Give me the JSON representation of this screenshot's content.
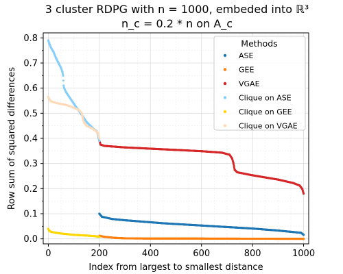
{
  "chart_data": {
    "type": "scatter",
    "title_line1": "3 cluster RDPG with n = 1000, embeded into ℝ³",
    "title_line2": "n_c = 0.2 * n on A_c",
    "xlabel": "Index from largest to smallest distance",
    "ylabel": "Row sum of squared differences",
    "xlim": [
      -20,
      1020
    ],
    "ylim": [
      -0.02,
      0.82
    ],
    "x_ticks": [
      0,
      200,
      400,
      600,
      800,
      1000
    ],
    "y_ticks": [
      0.0,
      0.1,
      0.2,
      0.3,
      0.4,
      0.5,
      0.6,
      0.7,
      0.8
    ],
    "x_tick_labels": [
      "0",
      "200",
      "400",
      "600",
      "800",
      "1000"
    ],
    "y_tick_labels": [
      "0.0",
      "0.1",
      "0.2",
      "0.3",
      "0.4",
      "0.5",
      "0.6",
      "0.7",
      "0.8"
    ],
    "grid": true,
    "legend_title": "Methods",
    "legend_position": "top-right",
    "series": [
      {
        "name": "ASE",
        "color": "#1f77b4",
        "points": [
          [
            200,
            0.1
          ],
          [
            210,
            0.088
          ],
          [
            250,
            0.079
          ],
          [
            300,
            0.074
          ],
          [
            350,
            0.07
          ],
          [
            400,
            0.066
          ],
          [
            450,
            0.062
          ],
          [
            500,
            0.059
          ],
          [
            550,
            0.056
          ],
          [
            600,
            0.053
          ],
          [
            650,
            0.05
          ],
          [
            700,
            0.047
          ],
          [
            750,
            0.044
          ],
          [
            800,
            0.041
          ],
          [
            850,
            0.037
          ],
          [
            900,
            0.033
          ],
          [
            950,
            0.028
          ],
          [
            990,
            0.024
          ],
          [
            1000,
            0.016
          ]
        ]
      },
      {
        "name": "GEE",
        "color": "#ff7f0e",
        "points": [
          [
            200,
            0.012
          ],
          [
            220,
            0.008
          ],
          [
            260,
            0.004
          ],
          [
            300,
            0.002
          ],
          [
            400,
            0.001
          ],
          [
            600,
            0.001
          ],
          [
            800,
            0.0005
          ],
          [
            1000,
            0.0
          ]
        ]
      },
      {
        "name": "VGAE",
        "color": "#d62728",
        "points": [
          [
            200,
            0.39
          ],
          [
            205,
            0.375
          ],
          [
            220,
            0.37
          ],
          [
            300,
            0.364
          ],
          [
            400,
            0.359
          ],
          [
            500,
            0.354
          ],
          [
            600,
            0.349
          ],
          [
            680,
            0.343
          ],
          [
            710,
            0.335
          ],
          [
            720,
            0.32
          ],
          [
            725,
            0.302
          ],
          [
            730,
            0.275
          ],
          [
            740,
            0.265
          ],
          [
            800,
            0.253
          ],
          [
            900,
            0.236
          ],
          [
            960,
            0.222
          ],
          [
            985,
            0.212
          ],
          [
            995,
            0.198
          ],
          [
            1000,
            0.18
          ]
        ]
      },
      {
        "name": "Clique on ASE",
        "color": "#87cefa",
        "points": [
          [
            0,
            0.79
          ],
          [
            5,
            0.775
          ],
          [
            10,
            0.762
          ],
          [
            20,
            0.745
          ],
          [
            30,
            0.72
          ],
          [
            40,
            0.7
          ],
          [
            50,
            0.68
          ],
          [
            55,
            0.665
          ],
          [
            58,
            0.65
          ],
          [
            60,
            0.61
          ],
          [
            62,
            0.6
          ],
          [
            70,
            0.583
          ],
          [
            80,
            0.568
          ],
          [
            90,
            0.553
          ],
          [
            100,
            0.538
          ],
          [
            110,
            0.523
          ],
          [
            120,
            0.51
          ],
          [
            130,
            0.495
          ],
          [
            140,
            0.48
          ],
          [
            150,
            0.465
          ],
          [
            160,
            0.455
          ],
          [
            170,
            0.445
          ],
          [
            180,
            0.435
          ],
          [
            188,
            0.43
          ],
          [
            193,
            0.42
          ],
          [
            197,
            0.4
          ],
          [
            200,
            0.39
          ]
        ]
      },
      {
        "name": "Clique on GEE",
        "color": "#ffd700",
        "points": [
          [
            0,
            0.04
          ],
          [
            3,
            0.033
          ],
          [
            10,
            0.028
          ],
          [
            30,
            0.024
          ],
          [
            60,
            0.02
          ],
          [
            100,
            0.016
          ],
          [
            150,
            0.013
          ],
          [
            180,
            0.011
          ],
          [
            200,
            0.008
          ]
        ]
      },
      {
        "name": "Clique on VGAE",
        "color": "#ffdab9",
        "points": [
          [
            0,
            0.565
          ],
          [
            3,
            0.557
          ],
          [
            10,
            0.548
          ],
          [
            30,
            0.541
          ],
          [
            60,
            0.535
          ],
          [
            80,
            0.53
          ],
          [
            100,
            0.522
          ],
          [
            120,
            0.512
          ],
          [
            130,
            0.503
          ],
          [
            135,
            0.48
          ],
          [
            140,
            0.462
          ],
          [
            150,
            0.45
          ],
          [
            170,
            0.44
          ],
          [
            185,
            0.43
          ],
          [
            195,
            0.42
          ],
          [
            200,
            0.4
          ]
        ]
      }
    ]
  }
}
